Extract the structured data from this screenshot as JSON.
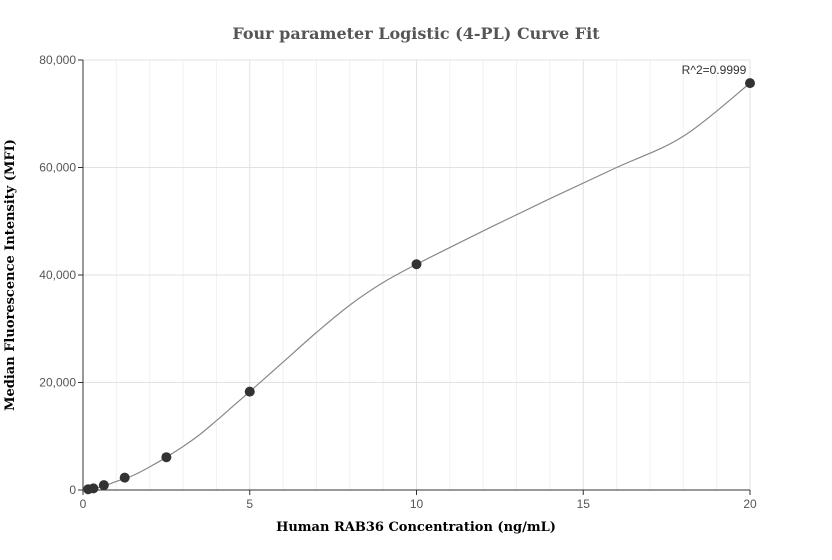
{
  "chart_data": {
    "type": "scatter",
    "title": "Four parameter Logistic (4-PL) Curve Fit",
    "xlabel": "Human RAB36 Concentration (ng/mL)",
    "ylabel": "Median Fluorescence Intensity (MFI)",
    "xlim": [
      0,
      20
    ],
    "ylim": [
      0,
      80000
    ],
    "x_ticks": [
      0,
      5,
      10,
      15,
      20
    ],
    "x_tick_labels": [
      "0",
      "5",
      "10",
      "15",
      "20"
    ],
    "y_ticks": [
      0,
      20000,
      40000,
      60000,
      80000
    ],
    "y_tick_labels": [
      "0",
      "20,000",
      "40,000",
      "60,000",
      "80,000"
    ],
    "grid": true,
    "series": [
      {
        "points": [
          {
            "x": 0.156,
            "y": 150
          },
          {
            "x": 0.3125,
            "y": 300
          },
          {
            "x": 0.625,
            "y": 900
          },
          {
            "x": 1.25,
            "y": 2300
          },
          {
            "x": 2.5,
            "y": 6100
          },
          {
            "x": 5,
            "y": 18300
          },
          {
            "x": 10,
            "y": 42000
          },
          {
            "x": 20,
            "y": 75700
          }
        ],
        "color": "#333333"
      }
    ],
    "fit_curve": {
      "model": "4-PL",
      "color": "#888888",
      "points": [
        {
          "x": 0,
          "y": 0
        },
        {
          "x": 0.5,
          "y": 500
        },
        {
          "x": 1,
          "y": 1600
        },
        {
          "x": 1.5,
          "y": 2700
        },
        {
          "x": 2,
          "y": 4300
        },
        {
          "x": 2.5,
          "y": 6100
        },
        {
          "x": 3,
          "y": 8100
        },
        {
          "x": 3.5,
          "y": 10300
        },
        {
          "x": 4,
          "y": 12900
        },
        {
          "x": 4.5,
          "y": 15600
        },
        {
          "x": 5,
          "y": 18300
        },
        {
          "x": 6,
          "y": 23800
        },
        {
          "x": 7,
          "y": 29300
        },
        {
          "x": 8,
          "y": 34400
        },
        {
          "x": 9,
          "y": 38600
        },
        {
          "x": 10,
          "y": 42000
        },
        {
          "x": 12,
          "y": 48200
        },
        {
          "x": 14,
          "y": 54200
        },
        {
          "x": 16,
          "y": 60000
        },
        {
          "x": 18,
          "y": 65800
        },
        {
          "x": 20,
          "y": 75700
        }
      ]
    },
    "annotations": [
      {
        "text": "R^2=0.9999",
        "x": 20,
        "y": 75700
      }
    ]
  }
}
